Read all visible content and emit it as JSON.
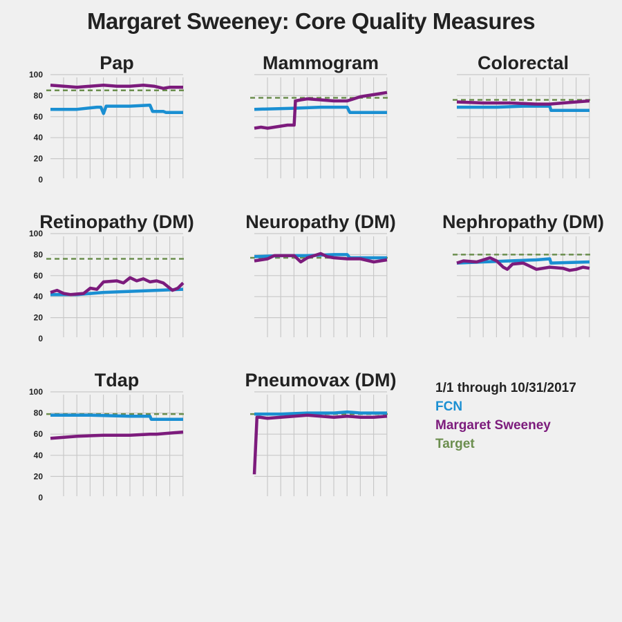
{
  "title": "Margaret Sweeney: Core Quality Measures",
  "legend": {
    "date_range": "1/1 through 10/31/2017",
    "fcn_label": "FCN",
    "person_label": "Margaret Sweeney",
    "target_label": "Target"
  },
  "colors": {
    "fcn": "#1a8fd2",
    "person": "#7c1b7c",
    "target": "#6b8e4e",
    "grid": "#c8c8c8",
    "background": "#f0f0f0"
  },
  "chart_data": [
    {
      "type": "line",
      "title": "Pap",
      "ylim": [
        0,
        100
      ],
      "yticks": [
        0,
        20,
        40,
        60,
        80,
        100
      ],
      "show_yticks": true,
      "grid": true,
      "target": 85,
      "series": [
        {
          "name": "FCN",
          "x": [
            0,
            0.2,
            0.35,
            0.38,
            0.4,
            0.42,
            0.6,
            0.75,
            0.77,
            0.85,
            0.87,
            1
          ],
          "y": [
            67,
            67,
            69,
            69,
            63,
            70,
            70,
            71,
            65,
            65,
            64,
            64
          ]
        },
        {
          "name": "Margaret Sweeney",
          "x": [
            0,
            0.1,
            0.2,
            0.3,
            0.4,
            0.5,
            0.6,
            0.7,
            0.78,
            0.85,
            0.9,
            1
          ],
          "y": [
            90,
            89,
            88,
            89,
            90,
            89,
            89,
            90,
            89,
            87,
            88,
            88
          ]
        }
      ]
    },
    {
      "type": "line",
      "title": "Mammogram",
      "ylim": [
        0,
        100
      ],
      "yticks": [
        0,
        20,
        40,
        60,
        80,
        100
      ],
      "show_yticks": false,
      "grid": true,
      "target": 78,
      "series": [
        {
          "name": "FCN",
          "x": [
            0,
            0.3,
            0.5,
            0.7,
            0.72,
            1
          ],
          "y": [
            67,
            68,
            69,
            69,
            64,
            64
          ]
        },
        {
          "name": "Margaret Sweeney",
          "x": [
            0,
            0.05,
            0.1,
            0.15,
            0.2,
            0.25,
            0.3,
            0.31,
            0.35,
            0.4,
            0.5,
            0.6,
            0.7,
            0.8,
            0.9,
            1
          ],
          "y": [
            49,
            50,
            49,
            50,
            51,
            52,
            52,
            75,
            76,
            77,
            76,
            75,
            75,
            79,
            81,
            83
          ]
        }
      ]
    },
    {
      "type": "line",
      "title": "Colorectal",
      "ylim": [
        0,
        100
      ],
      "yticks": [
        0,
        20,
        40,
        60,
        80,
        100
      ],
      "show_yticks": false,
      "grid": true,
      "target": 76,
      "series": [
        {
          "name": "FCN",
          "x": [
            0,
            0.3,
            0.5,
            0.7,
            0.71,
            1
          ],
          "y": [
            69,
            69,
            70,
            70,
            66,
            66
          ]
        },
        {
          "name": "Margaret Sweeney",
          "x": [
            0,
            0.2,
            0.4,
            0.6,
            0.7,
            0.8,
            0.9,
            1
          ],
          "y": [
            74,
            73,
            73,
            72,
            72,
            73,
            74,
            75
          ]
        }
      ]
    },
    {
      "type": "line",
      "title": "Retinopathy (DM)",
      "ylim": [
        0,
        100
      ],
      "yticks": [
        0,
        20,
        40,
        60,
        80,
        100
      ],
      "show_yticks": true,
      "grid": true,
      "target": 76,
      "series": [
        {
          "name": "FCN",
          "x": [
            0,
            0.2,
            0.4,
            0.6,
            0.8,
            1
          ],
          "y": [
            42,
            42,
            44,
            45,
            46,
            47
          ]
        },
        {
          "name": "Margaret Sweeney",
          "x": [
            0,
            0.05,
            0.1,
            0.15,
            0.25,
            0.3,
            0.35,
            0.4,
            0.5,
            0.55,
            0.6,
            0.65,
            0.7,
            0.75,
            0.8,
            0.85,
            0.88,
            0.92,
            0.96,
            1
          ],
          "y": [
            44,
            46,
            43,
            42,
            43,
            48,
            47,
            54,
            55,
            53,
            58,
            55,
            57,
            54,
            55,
            53,
            50,
            46,
            48,
            53
          ]
        }
      ]
    },
    {
      "type": "line",
      "title": "Neuropathy (DM)",
      "ylim": [
        0,
        100
      ],
      "yticks": [
        0,
        20,
        40,
        60,
        80,
        100
      ],
      "show_yticks": false,
      "grid": true,
      "target": 77,
      "series": [
        {
          "name": "FCN",
          "x": [
            0,
            0.2,
            0.4,
            0.6,
            0.7,
            0.72,
            1
          ],
          "y": [
            78,
            79,
            79,
            80,
            80,
            77,
            77
          ]
        },
        {
          "name": "Margaret Sweeney",
          "x": [
            0,
            0.05,
            0.1,
            0.15,
            0.3,
            0.35,
            0.4,
            0.5,
            0.55,
            0.6,
            0.7,
            0.8,
            0.9,
            0.95,
            1
          ],
          "y": [
            74,
            75,
            76,
            79,
            79,
            73,
            77,
            81,
            78,
            77,
            76,
            76,
            73,
            74,
            75
          ]
        }
      ]
    },
    {
      "type": "line",
      "title": "Nephropathy (DM)",
      "ylim": [
        0,
        100
      ],
      "yticks": [
        0,
        20,
        40,
        60,
        80,
        100
      ],
      "show_yticks": false,
      "grid": true,
      "target": 80,
      "series": [
        {
          "name": "FCN",
          "x": [
            0,
            0.2,
            0.4,
            0.6,
            0.7,
            0.71,
            1
          ],
          "y": [
            72,
            73,
            74,
            75,
            76,
            72,
            73
          ]
        },
        {
          "name": "Margaret Sweeney",
          "x": [
            0,
            0.05,
            0.15,
            0.25,
            0.3,
            0.35,
            0.38,
            0.42,
            0.5,
            0.55,
            0.6,
            0.7,
            0.8,
            0.85,
            0.9,
            0.95,
            1
          ],
          "y": [
            72,
            74,
            73,
            77,
            74,
            68,
            66,
            71,
            72,
            69,
            66,
            68,
            67,
            65,
            66,
            68,
            67
          ]
        }
      ]
    },
    {
      "type": "line",
      "title": "Tdap",
      "ylim": [
        0,
        100
      ],
      "yticks": [
        0,
        20,
        40,
        60,
        80,
        100
      ],
      "show_yticks": true,
      "grid": true,
      "target": 79,
      "series": [
        {
          "name": "FCN",
          "x": [
            0,
            0.3,
            0.6,
            0.75,
            0.76,
            1
          ],
          "y": [
            78,
            78,
            77,
            77,
            74,
            74
          ]
        },
        {
          "name": "Margaret Sweeney",
          "x": [
            0,
            0.2,
            0.4,
            0.6,
            0.75,
            0.8,
            1
          ],
          "y": [
            56,
            58,
            59,
            59,
            60,
            60,
            62
          ]
        }
      ]
    },
    {
      "type": "line",
      "title": "Pneumovax (DM)",
      "ylim": [
        0,
        100
      ],
      "yticks": [
        0,
        20,
        40,
        60,
        80,
        100
      ],
      "show_yticks": false,
      "grid": true,
      "target": 79,
      "series": [
        {
          "name": "FCN",
          "x": [
            0,
            0.2,
            0.4,
            0.6,
            0.7,
            0.8,
            1
          ],
          "y": [
            79,
            79,
            80,
            80,
            81,
            80,
            80
          ]
        },
        {
          "name": "Margaret Sweeney",
          "x": [
            0,
            0.02,
            0.04,
            0.1,
            0.2,
            0.3,
            0.4,
            0.5,
            0.6,
            0.7,
            0.8,
            0.9,
            1
          ],
          "y": [
            22,
            76,
            76,
            75,
            76,
            77,
            78,
            77,
            76,
            77,
            76,
            76,
            77
          ]
        }
      ]
    }
  ]
}
